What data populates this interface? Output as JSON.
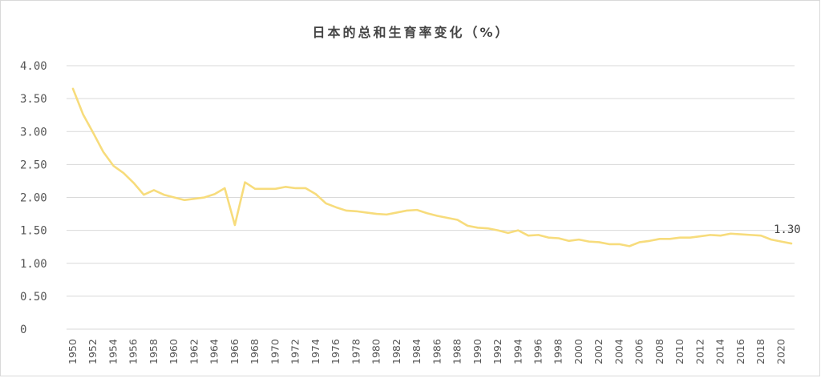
{
  "chart_data": {
    "type": "line",
    "title": "日本的总和生育率变化（%）",
    "xlabel": "",
    "ylabel": "",
    "ylim": [
      0,
      4
    ],
    "xlim": [
      1950,
      2021
    ],
    "yticks": [
      "0",
      "0.50",
      "1.00",
      "1.50",
      "2.00",
      "2.50",
      "3.00",
      "3.50",
      "4.00"
    ],
    "xticks": [
      "1950",
      "1952",
      "1954",
      "1956",
      "1958",
      "1960",
      "1962",
      "1964",
      "1966",
      "1968",
      "1970",
      "1972",
      "1974",
      "1976",
      "1978",
      "1980",
      "1982",
      "1984",
      "1986",
      "1988",
      "1990",
      "1992",
      "1994",
      "1996",
      "1998",
      "2000",
      "2002",
      "2004",
      "2006",
      "2008",
      "2010",
      "2012",
      "2014",
      "2016",
      "2018",
      "2020"
    ],
    "grid": true,
    "line_color": "#f7dc7c",
    "series": [
      {
        "x": [
          1950,
          1951,
          1952,
          1953,
          1954,
          1955,
          1956,
          1957,
          1958,
          1959,
          1960,
          1961,
          1962,
          1963,
          1964,
          1965,
          1966,
          1967,
          1968,
          1969,
          1970,
          1971,
          1972,
          1973,
          1974,
          1975,
          1976,
          1977,
          1978,
          1979,
          1980,
          1981,
          1982,
          1983,
          1984,
          1985,
          1986,
          1987,
          1988,
          1989,
          1990,
          1991,
          1992,
          1993,
          1994,
          1995,
          1996,
          1997,
          1998,
          1999,
          2000,
          2001,
          2002,
          2003,
          2004,
          2005,
          2006,
          2007,
          2008,
          2009,
          2010,
          2011,
          2012,
          2013,
          2014,
          2015,
          2016,
          2017,
          2018,
          2019,
          2020,
          2021
        ],
        "values": [
          3.65,
          3.26,
          2.98,
          2.69,
          2.48,
          2.37,
          2.22,
          2.04,
          2.11,
          2.04,
          2.0,
          1.96,
          1.98,
          2.0,
          2.05,
          2.14,
          1.58,
          2.23,
          2.13,
          2.13,
          2.13,
          2.16,
          2.14,
          2.14,
          2.05,
          1.91,
          1.85,
          1.8,
          1.79,
          1.77,
          1.75,
          1.74,
          1.77,
          1.8,
          1.81,
          1.76,
          1.72,
          1.69,
          1.66,
          1.57,
          1.54,
          1.53,
          1.5,
          1.46,
          1.5,
          1.42,
          1.43,
          1.39,
          1.38,
          1.34,
          1.36,
          1.33,
          1.32,
          1.29,
          1.29,
          1.26,
          1.32,
          1.34,
          1.37,
          1.37,
          1.39,
          1.39,
          1.41,
          1.43,
          1.42,
          1.45,
          1.44,
          1.43,
          1.42,
          1.36,
          1.33,
          1.3
        ]
      }
    ],
    "annotations": [
      {
        "x": 2021,
        "y": 1.3,
        "text": "1.30"
      }
    ]
  }
}
